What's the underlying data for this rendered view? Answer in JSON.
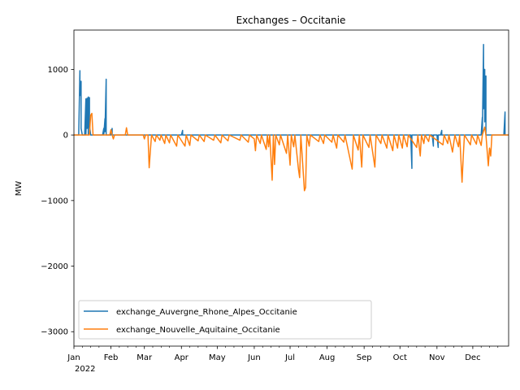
{
  "chart_data": {
    "type": "line",
    "title": "Exchanges – Occitanie",
    "ylabel": "MW",
    "xlabel": "",
    "year_label": "2022",
    "xlim": [
      "2022-01-01",
      "2022-12-31"
    ],
    "ylim": [
      -3220,
      1600
    ],
    "yticks": [
      1000,
      0,
      -1000,
      -2000,
      -3000
    ],
    "ytick_labels": [
      "1000",
      "0",
      "−1000",
      "−2000",
      "−3000"
    ],
    "xticks": [
      {
        "date": "2022-01-01",
        "label": "Jan"
      },
      {
        "date": "2022-02-01",
        "label": "Feb"
      },
      {
        "date": "2022-03-01",
        "label": "Mar"
      },
      {
        "date": "2022-04-01",
        "label": "Apr"
      },
      {
        "date": "2022-05-01",
        "label": "May"
      },
      {
        "date": "2022-06-01",
        "label": "Jun"
      },
      {
        "date": "2022-07-01",
        "label": "Jul"
      },
      {
        "date": "2022-08-01",
        "label": "Aug"
      },
      {
        "date": "2022-09-01",
        "label": "Sep"
      },
      {
        "date": "2022-10-01",
        "label": "Oct"
      },
      {
        "date": "2022-11-01",
        "label": "Nov"
      },
      {
        "date": "2022-12-01",
        "label": "Dec"
      }
    ],
    "legend_position": "lower-left",
    "grid": false,
    "series": [
      {
        "name": "exchange_Auvergne_Rhone_Alpes_Occitanie",
        "color": "#1f77b4",
        "points": [
          [
            "2022-01-01",
            0
          ],
          [
            "2022-01-05",
            0
          ],
          [
            "2022-01-06",
            980
          ],
          [
            "2022-01-06",
            600
          ],
          [
            "2022-01-07",
            820
          ],
          [
            "2022-01-07",
            100
          ],
          [
            "2022-01-08",
            0
          ],
          [
            "2022-01-10",
            0
          ],
          [
            "2022-01-11",
            550
          ],
          [
            "2022-01-11",
            0
          ],
          [
            "2022-01-12",
            560
          ],
          [
            "2022-01-12",
            100
          ],
          [
            "2022-01-13",
            580
          ],
          [
            "2022-01-13",
            0
          ],
          [
            "2022-01-14",
            570
          ],
          [
            "2022-01-14",
            150
          ],
          [
            "2022-01-15",
            0
          ],
          [
            "2022-01-16",
            0
          ],
          [
            "2022-01-25",
            0
          ],
          [
            "2022-01-26",
            100
          ],
          [
            "2022-01-26",
            0
          ],
          [
            "2022-01-27",
            250
          ],
          [
            "2022-01-27",
            50
          ],
          [
            "2022-01-28",
            850
          ],
          [
            "2022-01-28",
            0
          ],
          [
            "2022-02-01",
            0
          ],
          [
            "2022-02-02",
            100
          ],
          [
            "2022-02-02",
            0
          ],
          [
            "2022-04-01",
            0
          ],
          [
            "2022-04-02",
            70
          ],
          [
            "2022-04-02",
            0
          ],
          [
            "2022-10-10",
            0
          ],
          [
            "2022-10-11",
            -510
          ],
          [
            "2022-10-11",
            0
          ],
          [
            "2022-10-28",
            0
          ],
          [
            "2022-10-29",
            -170
          ],
          [
            "2022-10-29",
            0
          ],
          [
            "2022-11-01",
            0
          ],
          [
            "2022-11-02",
            -190
          ],
          [
            "2022-11-02",
            0
          ],
          [
            "2022-11-04",
            0
          ],
          [
            "2022-11-05",
            70
          ],
          [
            "2022-11-05",
            0
          ],
          [
            "2022-12-08",
            0
          ],
          [
            "2022-12-09",
            270
          ],
          [
            "2022-12-09",
            0
          ],
          [
            "2022-12-10",
            1380
          ],
          [
            "2022-12-10",
            400
          ],
          [
            "2022-12-11",
            1000
          ],
          [
            "2022-12-11",
            200
          ],
          [
            "2022-12-12",
            900
          ],
          [
            "2022-12-12",
            0
          ],
          [
            "2022-12-27",
            0
          ],
          [
            "2022-12-28",
            350
          ],
          [
            "2022-12-28",
            0
          ],
          [
            "2022-12-31",
            0
          ]
        ]
      },
      {
        "name": "exchange_Nouvelle_Aquitaine_Occitanie",
        "color": "#ff7f0e",
        "points": [
          [
            "2022-01-01",
            0
          ],
          [
            "2022-01-14",
            0
          ],
          [
            "2022-01-15",
            300
          ],
          [
            "2022-01-16",
            330
          ],
          [
            "2022-01-17",
            0
          ],
          [
            "2022-01-31",
            0
          ],
          [
            "2022-02-01",
            80
          ],
          [
            "2022-02-02",
            0
          ],
          [
            "2022-02-03",
            -60
          ],
          [
            "2022-02-04",
            0
          ],
          [
            "2022-02-13",
            0
          ],
          [
            "2022-02-14",
            110
          ],
          [
            "2022-02-15",
            0
          ],
          [
            "2022-02-28",
            0
          ],
          [
            "2022-03-01",
            -60
          ],
          [
            "2022-03-02",
            0
          ],
          [
            "2022-03-04",
            0
          ],
          [
            "2022-03-05",
            -500
          ],
          [
            "2022-03-06",
            -240
          ],
          [
            "2022-03-07",
            0
          ],
          [
            "2022-03-10",
            -100
          ],
          [
            "2022-03-11",
            0
          ],
          [
            "2022-03-14",
            -80
          ],
          [
            "2022-03-15",
            0
          ],
          [
            "2022-03-18",
            -130
          ],
          [
            "2022-03-19",
            0
          ],
          [
            "2022-03-22",
            -120
          ],
          [
            "2022-03-23",
            0
          ],
          [
            "2022-03-28",
            -170
          ],
          [
            "2022-03-29",
            0
          ],
          [
            "2022-04-04",
            -170
          ],
          [
            "2022-04-05",
            0
          ],
          [
            "2022-04-08",
            -160
          ],
          [
            "2022-04-09",
            0
          ],
          [
            "2022-04-15",
            -90
          ],
          [
            "2022-04-16",
            0
          ],
          [
            "2022-04-20",
            -100
          ],
          [
            "2022-04-21",
            0
          ],
          [
            "2022-04-28",
            -80
          ],
          [
            "2022-04-29",
            0
          ],
          [
            "2022-05-04",
            -120
          ],
          [
            "2022-05-05",
            0
          ],
          [
            "2022-05-10",
            -90
          ],
          [
            "2022-05-11",
            0
          ],
          [
            "2022-05-20",
            -80
          ],
          [
            "2022-05-21",
            0
          ],
          [
            "2022-05-27",
            -110
          ],
          [
            "2022-05-28",
            0
          ],
          [
            "2022-06-01",
            -60
          ],
          [
            "2022-06-02",
            -240
          ],
          [
            "2022-06-03",
            0
          ],
          [
            "2022-06-06",
            -130
          ],
          [
            "2022-06-07",
            0
          ],
          [
            "2022-06-11",
            -220
          ],
          [
            "2022-06-12",
            0
          ],
          [
            "2022-06-13",
            -180
          ],
          [
            "2022-06-14",
            0
          ],
          [
            "2022-06-16",
            -690
          ],
          [
            "2022-06-17",
            0
          ],
          [
            "2022-06-18",
            -450
          ],
          [
            "2022-06-19",
            0
          ],
          [
            "2022-06-22",
            -150
          ],
          [
            "2022-06-23",
            0
          ],
          [
            "2022-06-28",
            -280
          ],
          [
            "2022-06-29",
            0
          ],
          [
            "2022-07-01",
            -460
          ],
          [
            "2022-07-02",
            0
          ],
          [
            "2022-07-04",
            -180
          ],
          [
            "2022-07-05",
            0
          ],
          [
            "2022-07-08",
            -520
          ],
          [
            "2022-07-09",
            -650
          ],
          [
            "2022-07-10",
            0
          ],
          [
            "2022-07-13",
            -850
          ],
          [
            "2022-07-14",
            -800
          ],
          [
            "2022-07-15",
            0
          ],
          [
            "2022-07-17",
            -170
          ],
          [
            "2022-07-18",
            0
          ],
          [
            "2022-07-25",
            -100
          ],
          [
            "2022-07-26",
            0
          ],
          [
            "2022-07-29",
            -130
          ],
          [
            "2022-07-30",
            0
          ],
          [
            "2022-08-05",
            -110
          ],
          [
            "2022-08-06",
            0
          ],
          [
            "2022-08-09",
            -200
          ],
          [
            "2022-08-10",
            0
          ],
          [
            "2022-08-15",
            -110
          ],
          [
            "2022-08-16",
            0
          ],
          [
            "2022-08-22",
            -520
          ],
          [
            "2022-08-23",
            0
          ],
          [
            "2022-08-27",
            -230
          ],
          [
            "2022-08-28",
            0
          ],
          [
            "2022-08-30",
            -490
          ],
          [
            "2022-08-31",
            0
          ],
          [
            "2022-09-05",
            -190
          ],
          [
            "2022-09-06",
            0
          ],
          [
            "2022-09-10",
            -490
          ],
          [
            "2022-09-11",
            0
          ],
          [
            "2022-09-15",
            -130
          ],
          [
            "2022-09-16",
            0
          ],
          [
            "2022-09-20",
            -200
          ],
          [
            "2022-09-21",
            0
          ],
          [
            "2022-09-25",
            -240
          ],
          [
            "2022-09-26",
            0
          ],
          [
            "2022-09-29",
            -200
          ],
          [
            "2022-09-30",
            0
          ],
          [
            "2022-10-03",
            -200
          ],
          [
            "2022-10-04",
            0
          ],
          [
            "2022-10-07",
            -180
          ],
          [
            "2022-10-08",
            0
          ],
          [
            "2022-10-15",
            -190
          ],
          [
            "2022-10-16",
            0
          ],
          [
            "2022-10-18",
            -320
          ],
          [
            "2022-10-19",
            0
          ],
          [
            "2022-10-21",
            -130
          ],
          [
            "2022-10-22",
            0
          ],
          [
            "2022-10-25",
            -100
          ],
          [
            "2022-10-26",
            0
          ],
          [
            "2022-11-06",
            -150
          ],
          [
            "2022-11-07",
            0
          ],
          [
            "2022-11-10",
            -130
          ],
          [
            "2022-11-11",
            0
          ],
          [
            "2022-11-14",
            -260
          ],
          [
            "2022-11-15",
            -130
          ],
          [
            "2022-11-16",
            0
          ],
          [
            "2022-11-19",
            -180
          ],
          [
            "2022-11-20",
            0
          ],
          [
            "2022-11-22",
            -720
          ],
          [
            "2022-11-23",
            -330
          ],
          [
            "2022-11-24",
            0
          ],
          [
            "2022-11-29",
            -150
          ],
          [
            "2022-11-30",
            0
          ],
          [
            "2022-12-04",
            -140
          ],
          [
            "2022-12-05",
            0
          ],
          [
            "2022-12-08",
            -160
          ],
          [
            "2022-12-09",
            0
          ],
          [
            "2022-12-11",
            120
          ],
          [
            "2022-12-12",
            0
          ],
          [
            "2022-12-14",
            -470
          ],
          [
            "2022-12-15",
            -200
          ],
          [
            "2022-12-16",
            -320
          ],
          [
            "2022-12-17",
            0
          ],
          [
            "2022-12-31",
            0
          ]
        ]
      }
    ]
  }
}
